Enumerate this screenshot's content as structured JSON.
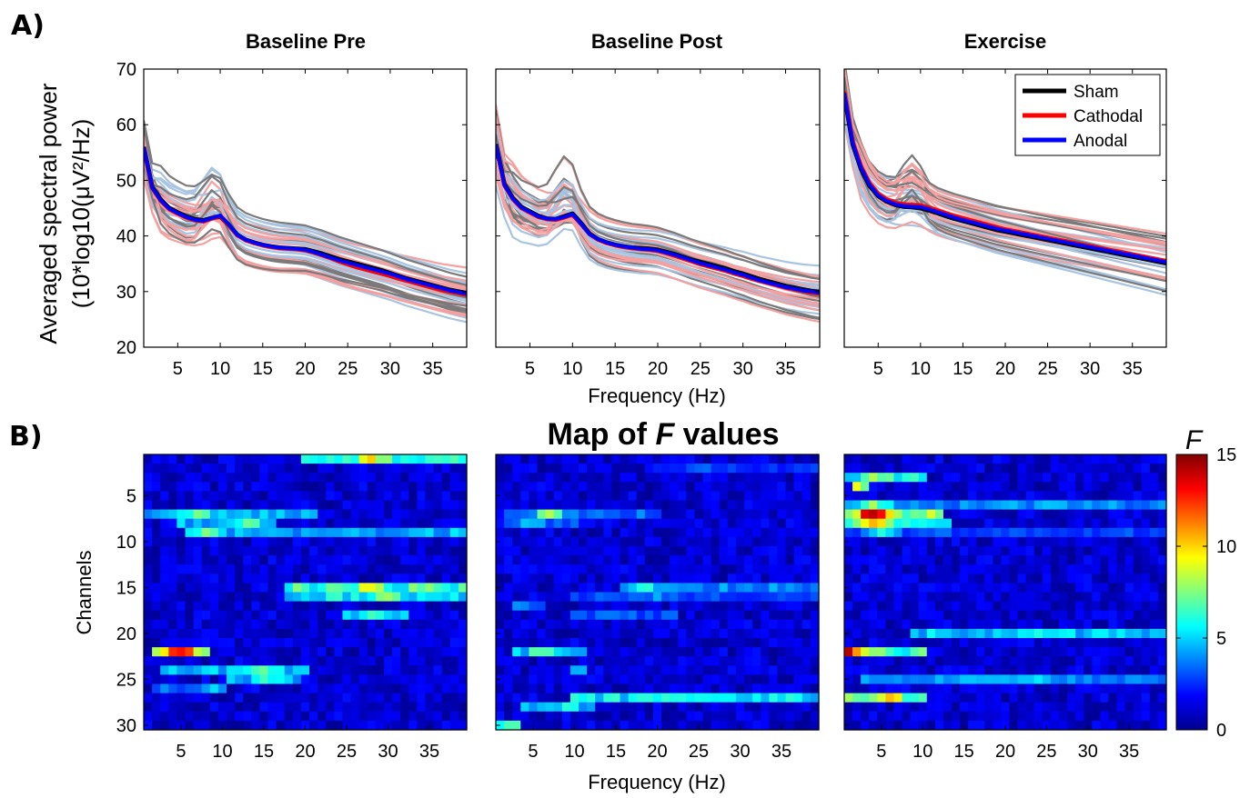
{
  "labels": {
    "panel_a": "A)",
    "panel_b": "B)",
    "spectra_ylabel_line1": "Averaged spectral power",
    "spectra_ylabel_line2": "(10*log10(μV²/Hz)",
    "xlabel": "Frequency (Hz)",
    "map_title_prefix": "Map of ",
    "map_title_var": "F",
    "map_title_suffix": " values",
    "map_ylabel": "Channels",
    "colorbar_label": "F"
  },
  "colors": {
    "sham_individual": "#7a7a7a",
    "cathodal_individual": "#f4a0a0",
    "anodal_individual": "#a9c4e0",
    "sham_mean": "#000000",
    "cathodal_mean": "#ff0000",
    "anodal_mean": "#0000ff"
  },
  "chart_data": [
    {
      "type": "line",
      "title": "Baseline Pre",
      "xlabel": "",
      "ylabel": "Averaged spectral power (10*log10(μV²/Hz)",
      "xlim": [
        1,
        39
      ],
      "ylim": [
        20,
        70
      ],
      "xticks": [
        5,
        10,
        15,
        20,
        25,
        30,
        35
      ],
      "yticks": [
        20,
        30,
        40,
        50,
        60,
        70
      ],
      "x": [
        1,
        2,
        3,
        4,
        5,
        6,
        7,
        8,
        9,
        10,
        11,
        12,
        13,
        14,
        15,
        16,
        17,
        18,
        19,
        20,
        21,
        22,
        23,
        24,
        25,
        26,
        27,
        28,
        29,
        30,
        31,
        32,
        33,
        34,
        35,
        36,
        37,
        38,
        39
      ],
      "series": [
        {
          "name": "Sham",
          "values": [
            56,
            48.8,
            46.5,
            45,
            44.2,
            43.5,
            43,
            42.8,
            43.2,
            43.5,
            42,
            40.2,
            39.3,
            38.8,
            38.4,
            38.1,
            37.9,
            37.8,
            37.7,
            37.6,
            37.2,
            36.8,
            36.3,
            35.8,
            35.4,
            35,
            34.6,
            34.2,
            33.8,
            33.3,
            32.8,
            32.3,
            31.9,
            31.5,
            31.1,
            30.7,
            30.3,
            30,
            29.7
          ]
        },
        {
          "name": "Cathodal",
          "values": [
            56,
            48.6,
            46.3,
            44.8,
            44,
            43.3,
            42.8,
            42.6,
            43.1,
            43.6,
            42,
            40.1,
            39.2,
            38.7,
            38.3,
            38,
            37.8,
            37.7,
            37.6,
            37.4,
            37,
            36.5,
            36,
            35.4,
            34.9,
            34.4,
            34,
            33.6,
            33.2,
            32.8,
            32.3,
            31.9,
            31.5,
            31.1,
            30.7,
            30.3,
            30,
            29.7,
            29.4
          ]
        },
        {
          "name": "Anodal",
          "values": [
            56,
            48.7,
            46.4,
            44.9,
            44.1,
            43.4,
            42.9,
            42.7,
            43.2,
            43.7,
            42.1,
            40.2,
            39.3,
            38.8,
            38.4,
            38.1,
            37.9,
            37.8,
            37.7,
            37.5,
            37.1,
            36.6,
            36.1,
            35.6,
            35.2,
            34.8,
            34.4,
            34,
            33.6,
            33.2,
            32.7,
            32.2,
            31.8,
            31.4,
            31,
            30.6,
            30.2,
            29.9,
            29.6
          ]
        }
      ]
    },
    {
      "type": "line",
      "title": "Baseline Post",
      "xlabel": "Frequency (Hz)",
      "ylabel": "",
      "xlim": [
        1,
        39
      ],
      "ylim": [
        20,
        70
      ],
      "xticks": [
        5,
        10,
        15,
        20,
        25,
        30,
        35
      ],
      "yticks": [
        20,
        30,
        40,
        50,
        60,
        70
      ],
      "x": [
        1,
        2,
        3,
        4,
        5,
        6,
        7,
        8,
        9,
        10,
        11,
        12,
        13,
        14,
        15,
        16,
        17,
        18,
        19,
        20,
        21,
        22,
        23,
        24,
        25,
        26,
        27,
        28,
        29,
        30,
        31,
        32,
        33,
        34,
        35,
        36,
        37,
        38,
        39
      ],
      "series": [
        {
          "name": "Sham",
          "values": [
            56.5,
            49.3,
            46.8,
            45.2,
            44.4,
            43.6,
            43.1,
            43,
            43.5,
            44,
            42.3,
            40.4,
            39.4,
            38.8,
            38.4,
            38.1,
            37.9,
            37.8,
            37.7,
            37.5,
            37.1,
            36.7,
            36.2,
            35.7,
            35.3,
            34.9,
            34.5,
            34.1,
            33.6,
            33.2,
            32.7,
            32.2,
            31.8,
            31.4,
            31,
            30.7,
            30.4,
            30.1,
            29.9
          ]
        },
        {
          "name": "Cathodal",
          "values": [
            56.3,
            49.1,
            46.6,
            45,
            44.2,
            43.4,
            43,
            42.9,
            43.3,
            43.8,
            42.1,
            40.3,
            39.3,
            38.7,
            38.3,
            38,
            37.8,
            37.6,
            37.5,
            37.3,
            36.9,
            36.4,
            35.9,
            35.4,
            34.9,
            34.5,
            34.1,
            33.7,
            33.2,
            32.8,
            32.3,
            31.9,
            31.5,
            31.1,
            30.7,
            30.4,
            30.1,
            29.8,
            29.6
          ]
        },
        {
          "name": "Anodal",
          "values": [
            56.4,
            49.2,
            46.7,
            45.1,
            44.3,
            43.5,
            43.1,
            43,
            43.4,
            43.9,
            42.2,
            40.3,
            39.4,
            38.8,
            38.4,
            38.1,
            37.9,
            37.7,
            37.6,
            37.4,
            37,
            36.6,
            36.1,
            35.6,
            35.1,
            34.7,
            34.3,
            33.9,
            33.4,
            33,
            32.5,
            32,
            31.6,
            31.2,
            30.8,
            30.5,
            30.2,
            30,
            29.8
          ]
        }
      ]
    },
    {
      "type": "line",
      "title": "Exercise",
      "xlabel": "",
      "ylabel": "",
      "xlim": [
        1,
        39
      ],
      "ylim": [
        20,
        70
      ],
      "xticks": [
        5,
        10,
        15,
        20,
        25,
        30,
        35
      ],
      "yticks": [
        20,
        30,
        40,
        50,
        60,
        70
      ],
      "legend": "top-right",
      "x": [
        1,
        2,
        3,
        4,
        5,
        6,
        7,
        8,
        9,
        10,
        11,
        12,
        13,
        14,
        15,
        16,
        17,
        18,
        19,
        20,
        21,
        22,
        23,
        24,
        25,
        26,
        27,
        28,
        29,
        30,
        31,
        32,
        33,
        34,
        35,
        36,
        37,
        38,
        39
      ],
      "series": [
        {
          "name": "Sham",
          "values": [
            65.5,
            56.5,
            52,
            49,
            47.2,
            46.2,
            45.6,
            45.3,
            45.2,
            45,
            44.6,
            44.1,
            43.6,
            43.1,
            42.7,
            42.3,
            41.9,
            41.5,
            41.1,
            40.8,
            40.5,
            40.2,
            39.9,
            39.6,
            39.3,
            39,
            38.7,
            38.4,
            38.1,
            37.8,
            37.5,
            37.2,
            36.9,
            36.6,
            36.3,
            36,
            35.7,
            35.4,
            35.1
          ]
        },
        {
          "name": "Cathodal",
          "values": [
            66,
            57,
            52.5,
            49.5,
            47.6,
            46.6,
            46,
            45.7,
            45.6,
            45.5,
            45.1,
            44.6,
            44.1,
            43.6,
            43.2,
            42.8,
            42.4,
            42,
            41.6,
            41.2,
            40.9,
            40.6,
            40.3,
            40,
            39.7,
            39.4,
            39.1,
            38.8,
            38.5,
            38.2,
            37.9,
            37.6,
            37.3,
            37,
            36.7,
            36.4,
            36.1,
            35.8,
            35.5
          ]
        },
        {
          "name": "Anodal",
          "values": [
            65.7,
            56.7,
            52.2,
            49.2,
            47.3,
            46.3,
            45.7,
            45.4,
            45.3,
            45.2,
            44.8,
            44.3,
            43.8,
            43.3,
            42.9,
            42.5,
            42.1,
            41.7,
            41.3,
            41,
            40.7,
            40.4,
            40.1,
            39.8,
            39.5,
            39.2,
            38.9,
            38.6,
            38.3,
            38,
            37.7,
            37.4,
            37.1,
            36.8,
            36.5,
            36.2,
            35.9,
            35.6,
            35.3
          ]
        }
      ]
    },
    {
      "type": "heatmap",
      "title": "Map of F values",
      "xlabel": "",
      "ylabel": "Channels",
      "xlim": [
        1,
        39
      ],
      "ylim": [
        1,
        30
      ],
      "xticks": [
        5,
        10,
        15,
        20,
        25,
        30,
        35
      ],
      "yticks": [
        5,
        10,
        15,
        20,
        25,
        30
      ],
      "clim": [
        0,
        15
      ],
      "colorbar_ticks": [
        0,
        5,
        10,
        15
      ],
      "hotspots": [
        {
          "channel": 1,
          "from": 20,
          "to": 39,
          "value": 6,
          "peak_x": 28,
          "peak": 9
        },
        {
          "channel": 7,
          "from": 1,
          "to": 21,
          "value": 4.5,
          "peak_x": 7,
          "peak": 7
        },
        {
          "channel": 8,
          "from": 5,
          "to": 16,
          "value": 4.5,
          "peak_x": 13,
          "peak": 7
        },
        {
          "channel": 9,
          "from": 6,
          "to": 39,
          "value": 4.5,
          "peak_x": 8,
          "peak": 8
        },
        {
          "channel": 15,
          "from": 18,
          "to": 39,
          "value": 6.5,
          "peak_x": 28,
          "peak": 9
        },
        {
          "channel": 16,
          "from": 18,
          "to": 39,
          "value": 5.5,
          "peak_x": 30,
          "peak": 7.5
        },
        {
          "channel": 18,
          "from": 25,
          "to": 32,
          "value": 4.5,
          "peak_x": 28,
          "peak": 6
        },
        {
          "channel": 22,
          "from": 2,
          "to": 8,
          "value": 9,
          "peak_x": 5,
          "peak": 15
        },
        {
          "channel": 24,
          "from": 3,
          "to": 20,
          "value": 4.5,
          "peak_x": 15,
          "peak": 6.5
        },
        {
          "channel": 25,
          "from": 11,
          "to": 19,
          "value": 4.5,
          "peak_x": 15,
          "peak": 6
        },
        {
          "channel": 26,
          "from": 2,
          "to": 10,
          "value": 3.5,
          "peak_x": 9,
          "peak": 5
        }
      ]
    },
    {
      "type": "heatmap",
      "title": "",
      "xlabel": "Frequency (Hz)",
      "ylabel": "",
      "xlim": [
        1,
        39
      ],
      "ylim": [
        1,
        30
      ],
      "xticks": [
        5,
        10,
        15,
        20,
        25,
        30,
        35
      ],
      "yticks": [
        5,
        10,
        15,
        20,
        25,
        30
      ],
      "clim": [
        0,
        15
      ],
      "hotspots": [
        {
          "channel": 2,
          "from": 20,
          "to": 39,
          "value": 2.5,
          "peak_x": 25,
          "peak": 3.5
        },
        {
          "channel": 7,
          "from": 2,
          "to": 20,
          "value": 3.5,
          "peak_x": 7,
          "peak": 8
        },
        {
          "channel": 8,
          "from": 2,
          "to": 10,
          "value": 3,
          "peak_x": 5,
          "peak": 5
        },
        {
          "channel": 15,
          "from": 16,
          "to": 39,
          "value": 4,
          "peak_x": 18,
          "peak": 6.5
        },
        {
          "channel": 16,
          "from": 10,
          "to": 39,
          "value": 3,
          "peak_x": 20,
          "peak": 4
        },
        {
          "channel": 17,
          "from": 3,
          "to": 6,
          "value": 3.5,
          "peak_x": 4,
          "peak": 4
        },
        {
          "channel": 18,
          "from": 10,
          "to": 22,
          "value": 3,
          "peak_x": 15,
          "peak": 4
        },
        {
          "channel": 22,
          "from": 3,
          "to": 11,
          "value": 4.5,
          "peak_x": 6,
          "peak": 7
        },
        {
          "channel": 24,
          "from": 10,
          "to": 11,
          "value": 4,
          "peak_x": 10,
          "peak": 4.5
        },
        {
          "channel": 27,
          "from": 10,
          "to": 39,
          "value": 5.5,
          "peak_x": 25,
          "peak": 6.5
        },
        {
          "channel": 28,
          "from": 4,
          "to": 12,
          "value": 4.5,
          "peak_x": 9,
          "peak": 6
        },
        {
          "channel": 30,
          "from": 1,
          "to": 3,
          "value": 4.5,
          "peak_x": 2,
          "peak": 7
        }
      ]
    },
    {
      "type": "heatmap",
      "title": "",
      "xlabel": "",
      "ylabel": "",
      "xlim": [
        1,
        39
      ],
      "ylim": [
        1,
        30
      ],
      "xticks": [
        5,
        10,
        15,
        20,
        25,
        30,
        35
      ],
      "yticks": [
        5,
        10,
        15,
        20,
        25,
        30
      ],
      "clim": [
        0,
        15
      ],
      "hotspots": [
        {
          "channel": 3,
          "from": 1,
          "to": 10,
          "value": 5.5,
          "peak_x": 4,
          "peak": 8
        },
        {
          "channel": 4,
          "from": 2,
          "to": 3,
          "value": 6,
          "peak_x": 2,
          "peak": 8
        },
        {
          "channel": 6,
          "from": 1,
          "to": 39,
          "value": 4,
          "peak_x": 4,
          "peak": 8
        },
        {
          "channel": 7,
          "from": 1,
          "to": 12,
          "value": 8,
          "peak_x": 4,
          "peak": 15
        },
        {
          "channel": 8,
          "from": 1,
          "to": 13,
          "value": 6,
          "peak_x": 4,
          "peak": 10
        },
        {
          "channel": 9,
          "from": 1,
          "to": 39,
          "value": 3,
          "peak_x": 5,
          "peak": 6
        },
        {
          "channel": 20,
          "from": 9,
          "to": 39,
          "value": 5,
          "peak_x": 25,
          "peak": 6
        },
        {
          "channel": 22,
          "from": 1,
          "to": 10,
          "value": 6.5,
          "peak_x": 1,
          "peak": 15
        },
        {
          "channel": 25,
          "from": 3,
          "to": 39,
          "value": 4,
          "peak_x": 25,
          "peak": 5
        },
        {
          "channel": 27,
          "from": 1,
          "to": 10,
          "value": 7,
          "peak_x": 6,
          "peak": 9.5
        }
      ]
    }
  ]
}
